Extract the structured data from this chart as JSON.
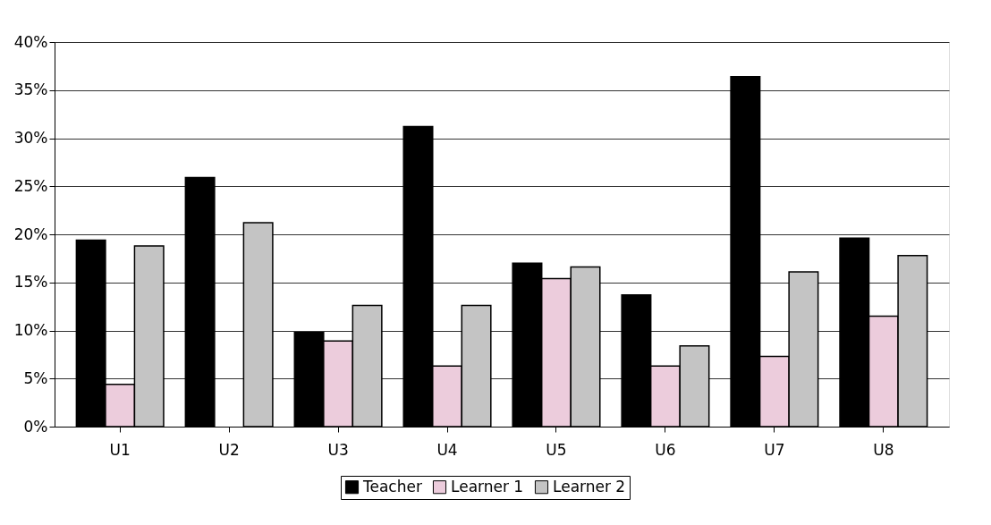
{
  "chart_data": {
    "type": "bar",
    "categories": [
      "U1",
      "U2",
      "U3",
      "U4",
      "U5",
      "U6",
      "U7",
      "U8"
    ],
    "series": [
      {
        "name": "Teacher",
        "color": "#000000",
        "values": [
          19.4,
          25.9,
          9.8,
          31.2,
          17.0,
          13.7,
          36.4,
          19.6
        ]
      },
      {
        "name": "Learner 1",
        "color": "#ecccdc",
        "values": [
          4.4,
          null,
          8.9,
          6.3,
          15.4,
          6.3,
          7.3,
          11.5
        ]
      },
      {
        "name": "Learner 2",
        "color": "#c4c4c4",
        "values": [
          18.8,
          21.2,
          12.6,
          12.6,
          16.6,
          8.4,
          16.1,
          17.8
        ]
      }
    ],
    "ylim": [
      0,
      40
    ],
    "yticks": [
      {
        "value": 0,
        "label": "0%"
      },
      {
        "value": 5,
        "label": "5%"
      },
      {
        "value": 10,
        "label": "10%"
      },
      {
        "value": 15,
        "label": "15%"
      },
      {
        "value": 20,
        "label": "20%"
      },
      {
        "value": 25,
        "label": "25%"
      },
      {
        "value": 30,
        "label": "30%"
      },
      {
        "value": 35,
        "label": "35%"
      },
      {
        "value": 40,
        "label": "40%"
      }
    ],
    "grid": "y",
    "legend": "bottom"
  }
}
